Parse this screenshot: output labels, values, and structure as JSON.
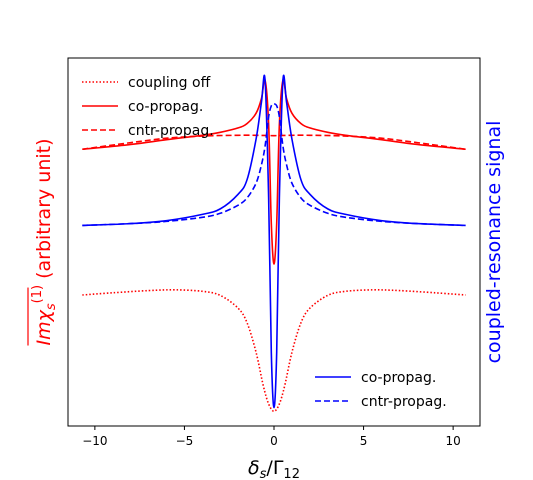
{
  "chart_data": {
    "type": "line",
    "title": "",
    "xlabel_main": "δ",
    "xlabel_sub1": "s",
    "xlabel_sep": "/Γ",
    "xlabel_sub2": "12",
    "ylabel_left": {
      "prefix": "Imχ",
      "sub": "s",
      "sup": "(1)",
      "suffix": " (arbitrary unit)",
      "color": "#ff0000"
    },
    "ylabel_right": {
      "text": "coupled-resonance signal",
      "color": "#0000ff"
    },
    "xlim": [
      -11.5,
      11.5
    ],
    "ylim": [
      0,
      1
    ],
    "xticks": [
      -10,
      -5,
      0,
      5,
      10
    ],
    "xtick_labels": [
      "−10",
      "−5",
      "0",
      "5",
      "10"
    ],
    "y_ticks_shown": false,
    "grid": false,
    "legends": [
      {
        "position": "upper-left",
        "entries": [
          {
            "label": "coupling off",
            "color": "#ff0000",
            "style": "dotted"
          },
          {
            "label": "co-propag.",
            "color": "#ff0000",
            "style": "solid"
          },
          {
            "label": "cntr-propag.",
            "color": "#ff0000",
            "style": "dashed"
          }
        ]
      },
      {
        "position": "lower-right",
        "entries": [
          {
            "label": "co-propag.",
            "color": "#0000ff",
            "style": "solid"
          },
          {
            "label": "cntr-propag.",
            "color": "#0000ff",
            "style": "dashed"
          }
        ]
      }
    ],
    "series": [
      {
        "name": "coupling off",
        "color": "#ff0000",
        "style": "dotted",
        "x": [
          -10.7,
          -9,
          -7,
          -5.5,
          -4,
          -3,
          -2,
          -1.5,
          -1,
          -0.6,
          -0.3,
          0,
          0.3,
          0.6,
          1,
          1.5,
          2,
          3,
          4,
          5.5,
          7,
          9,
          10.7
        ],
        "y": [
          0.356,
          0.362,
          0.368,
          0.37,
          0.366,
          0.355,
          0.32,
          0.28,
          0.2,
          0.11,
          0.06,
          0.04,
          0.06,
          0.11,
          0.2,
          0.28,
          0.32,
          0.355,
          0.366,
          0.37,
          0.368,
          0.362,
          0.356
        ]
      },
      {
        "name": "co-propag.",
        "color": "#ff0000",
        "style": "solid",
        "x": [
          -10.7,
          -8,
          -6,
          -4,
          -3,
          -2,
          -1.5,
          -1,
          -0.7,
          -0.5,
          -0.3,
          -0.15,
          0,
          0.15,
          0.3,
          0.5,
          0.7,
          1,
          1.5,
          2,
          3,
          4,
          6,
          8,
          10.7
        ],
        "y": [
          0.752,
          0.765,
          0.778,
          0.79,
          0.798,
          0.81,
          0.822,
          0.85,
          0.89,
          0.94,
          0.82,
          0.55,
          0.44,
          0.55,
          0.82,
          0.94,
          0.89,
          0.85,
          0.822,
          0.81,
          0.798,
          0.79,
          0.778,
          0.765,
          0.752
        ]
      },
      {
        "name": "cntr-propag.",
        "color": "#ff0000",
        "style": "dashed",
        "x": [
          -10.7,
          -8,
          -6,
          -4,
          -2,
          -1,
          0,
          1,
          2,
          4,
          6,
          8,
          10.7
        ],
        "y": [
          0.752,
          0.77,
          0.782,
          0.788,
          0.79,
          0.79,
          0.789,
          0.79,
          0.79,
          0.788,
          0.782,
          0.77,
          0.752
        ]
      },
      {
        "name": "co-propag.",
        "color": "#0000ff",
        "style": "solid",
        "x": [
          -10.7,
          -8,
          -6,
          -4,
          -3,
          -2,
          -1.5,
          -1,
          -0.7,
          -0.5,
          -0.3,
          -0.15,
          0,
          0.15,
          0.3,
          0.5,
          0.7,
          1,
          1.5,
          2,
          3,
          4,
          6,
          8,
          10.7
        ],
        "y": [
          0.545,
          0.55,
          0.558,
          0.575,
          0.59,
          0.63,
          0.67,
          0.78,
          0.88,
          0.94,
          0.62,
          0.2,
          0.05,
          0.2,
          0.62,
          0.94,
          0.88,
          0.78,
          0.67,
          0.63,
          0.59,
          0.575,
          0.558,
          0.55,
          0.545
        ]
      },
      {
        "name": "cntr-propag.",
        "color": "#0000ff",
        "style": "dashed",
        "x": [
          -10.7,
          -8,
          -6,
          -4,
          -3,
          -2,
          -1.5,
          -1,
          -0.7,
          -0.5,
          -0.3,
          -0.15,
          0,
          0.15,
          0.3,
          0.5,
          0.7,
          1,
          1.5,
          2,
          3,
          4,
          6,
          8,
          10.7
        ],
        "y": [
          0.545,
          0.55,
          0.556,
          0.567,
          0.578,
          0.6,
          0.62,
          0.66,
          0.71,
          0.76,
          0.84,
          0.87,
          0.875,
          0.87,
          0.84,
          0.76,
          0.71,
          0.66,
          0.62,
          0.6,
          0.578,
          0.567,
          0.556,
          0.55,
          0.545
        ]
      }
    ]
  }
}
